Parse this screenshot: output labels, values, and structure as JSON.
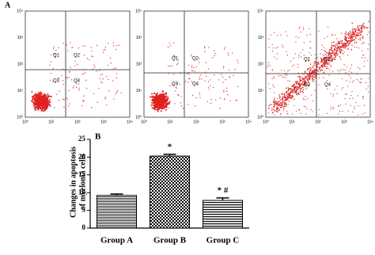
{
  "panel_a": {
    "label": "A",
    "axis_ticks": [
      "10⁰",
      "10¹",
      "10²",
      "10³",
      "10⁴"
    ],
    "plots": [
      {
        "quadrants": [
          "Q1",
          "Q2",
          "Q3",
          "Q4"
        ]
      },
      {
        "quadrants": [
          "Q1",
          "Q2",
          "Q3",
          "Q4"
        ]
      },
      {
        "quadrants": [
          "Q1",
          "Q2",
          "Q3",
          "Q4"
        ]
      }
    ]
  },
  "chart_data": {
    "type": "bar",
    "panel_label": "B",
    "ylabel": [
      "Changes in apoptosis",
      "of myeloma cells"
    ],
    "categories": [
      "Group A",
      "Group B",
      "Group C"
    ],
    "values": [
      9.2,
      20.3,
      7.8
    ],
    "errors": [
      0.4,
      0.5,
      0.7
    ],
    "annotations": [
      null,
      "*",
      "* #"
    ],
    "fills": [
      "hlines",
      "checker",
      "stripes"
    ],
    "ylim": [
      0,
      25
    ],
    "yticks": [
      0,
      5,
      10,
      15,
      20,
      25
    ]
  }
}
